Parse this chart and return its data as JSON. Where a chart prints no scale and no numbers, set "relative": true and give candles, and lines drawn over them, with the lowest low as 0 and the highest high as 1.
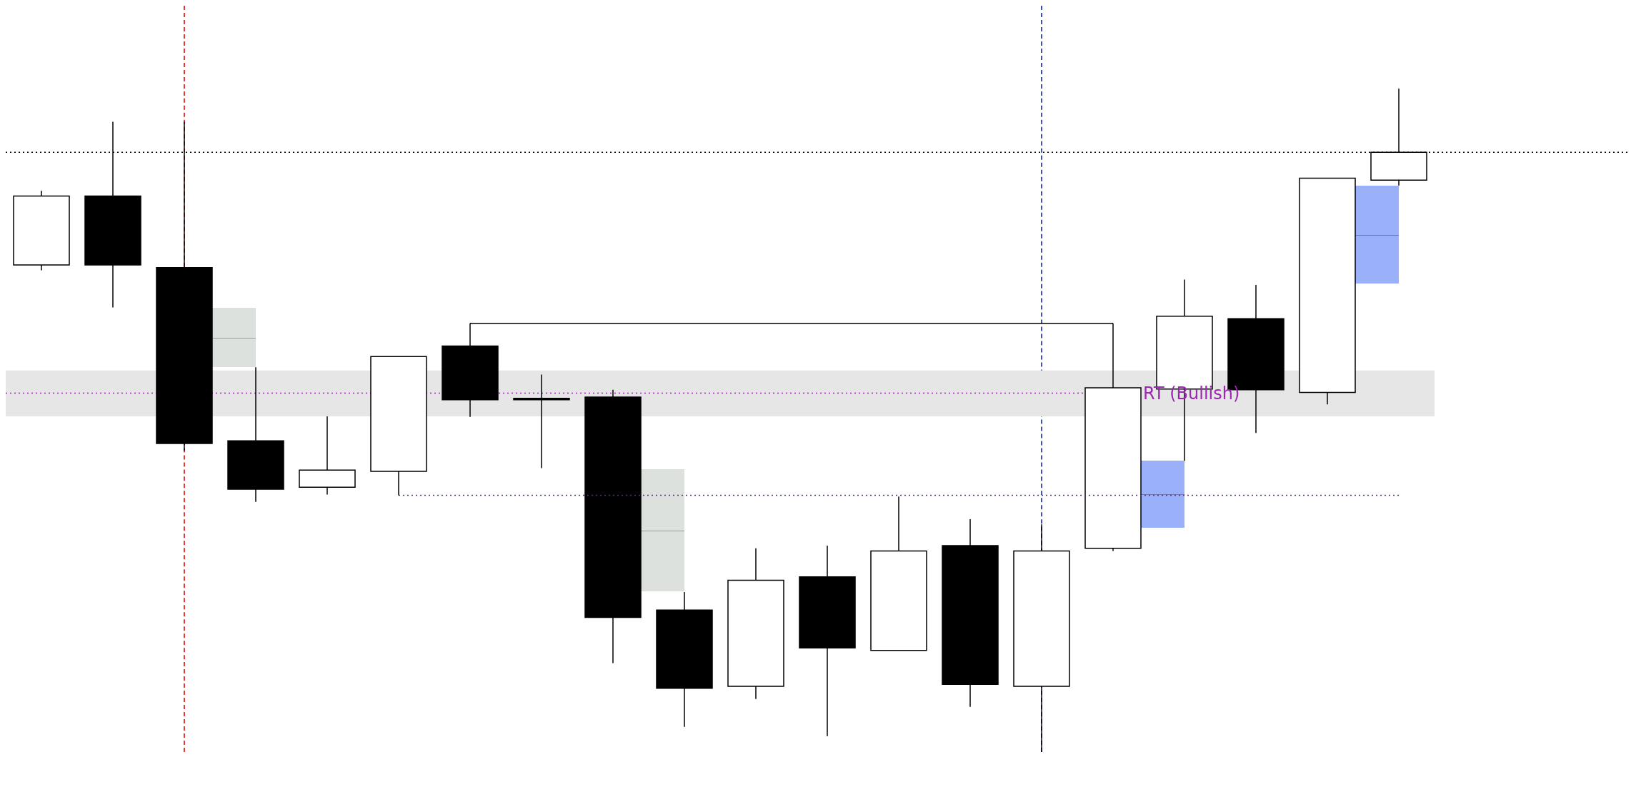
{
  "chart_data": {
    "type": "candlestick",
    "relative": true,
    "tick_labels": false,
    "categories": [
      null,
      null,
      null,
      null,
      null,
      null,
      null,
      null,
      null,
      null,
      null,
      null,
      null,
      null,
      null,
      null,
      null,
      null,
      null,
      null
    ],
    "series": [
      {
        "type": "candlestick",
        "colors": [
          "#ffffff",
          "#000000",
          "#000000",
          "#000000",
          "#ffffff",
          "#ffffff",
          "#000000",
          "#000000",
          "#000000",
          "#000000",
          "#ffffff",
          "#000000",
          "#ffffff",
          "#000000",
          "#ffffff",
          "#ffffff",
          "#ffffff",
          "#000000",
          "#ffffff",
          "#ffffff"
        ],
        "ohlc": [
          [
            0.734,
            0.846,
            0.726,
            0.838
          ],
          [
            0.838,
            0.95,
            0.67,
            0.734
          ],
          [
            0.73,
            0.95,
            0.454,
            0.465
          ],
          [
            0.469,
            0.58,
            0.377,
            0.396
          ],
          [
            0.399,
            0.506,
            0.388,
            0.425
          ],
          [
            0.423,
            0.596,
            0.387,
            0.596
          ],
          [
            0.612,
            0.646,
            0.505,
            0.531
          ],
          [
            0.533,
            0.569,
            0.428,
            0.531
          ],
          [
            0.535,
            0.546,
            0.134,
            0.203
          ],
          [
            0.214,
            0.241,
            0.038,
            0.096
          ],
          [
            0.099,
            0.307,
            0.08,
            0.259
          ],
          [
            0.264,
            0.311,
            0.024,
            0.157
          ],
          [
            0.153,
            0.385,
            0.153,
            0.303
          ],
          [
            0.311,
            0.351,
            0.068,
            0.102
          ],
          [
            0.099,
            0.343,
            0,
            0.303
          ],
          [
            0.307,
            0.646,
            0.303,
            0.549
          ],
          [
            0.547,
            0.712,
            0.439,
            0.657
          ],
          [
            0.653,
            0.704,
            0.481,
            0.546
          ],
          [
            0.542,
            0.865,
            0.524,
            0.865
          ],
          [
            0.862,
            1,
            0.854,
            0.904
          ]
        ]
      },
      {
        "type": "line",
        "color": "#000000",
        "line_style": "solid",
        "values": [
          null,
          null,
          null,
          null,
          null,
          null,
          0.646,
          0.646,
          0.646,
          0.646,
          0.646,
          0.646,
          0.646,
          0.646,
          0.646,
          0.646,
          null,
          null,
          null,
          null
        ]
      },
      {
        "type": "line",
        "color": "#6a1b9a",
        "line_style": "dotted",
        "values": [
          null,
          null,
          null,
          null,
          null,
          0.387,
          0.387,
          0.387,
          0.387,
          0.387,
          0.387,
          0.387,
          0.387,
          0.387,
          0.387,
          0.387,
          0.387,
          0.387,
          0.387,
          0.387
        ]
      }
    ],
    "bands": [
      {
        "axis": "y",
        "from": 0.506,
        "to": 0.575,
        "color": "#e6e6e6"
      }
    ],
    "ref_lines": [
      {
        "axis": "y",
        "value": 0.541,
        "label": "RT (Bullish)",
        "color": "#9c27b0",
        "line_style": "dotted"
      },
      {
        "axis": "y",
        "value": 0.904,
        "color": "#000000",
        "line_style": "dotted"
      }
    ]
  }
}
